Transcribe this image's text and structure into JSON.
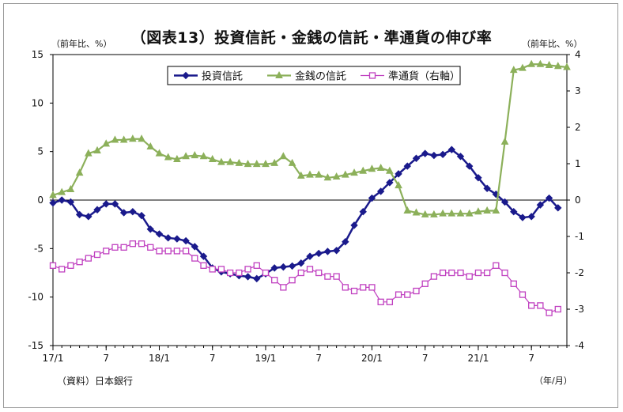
{
  "title": "（図表13）投資信託・金銭の信託・準通貨の伸び率",
  "unit_left": "（前年比、%）",
  "unit_right": "（前年比、%）",
  "source": "（資料）日本銀行",
  "x_unit": "（年/月）",
  "chart_data": {
    "type": "line",
    "title": "（図表13）投資信託・金銭の信託・準通貨の伸び率",
    "legend_position": "top-center",
    "x_tick_labels": [
      "17/1",
      "7",
      "18/1",
      "7",
      "19/1",
      "7",
      "20/1",
      "7",
      "21/1",
      "7"
    ],
    "x_ticks_at": [
      0,
      6,
      12,
      18,
      24,
      30,
      36,
      42,
      48,
      54
    ],
    "x_range": [
      0,
      58
    ],
    "y_left": {
      "range": [
        -15,
        15
      ],
      "ticks": [
        15,
        10,
        5,
        0,
        -5,
        -10,
        -15
      ],
      "label": "（前年比、%）"
    },
    "y_right": {
      "range": [
        -4,
        4
      ],
      "ticks": [
        4,
        3,
        2,
        1,
        0,
        -1,
        -2,
        -3,
        -4
      ],
      "label": "（前年比、%）"
    },
    "grid": false,
    "series": [
      {
        "name": "投資信託",
        "axis": "left",
        "color": "#1a1a8c",
        "marker": "diamond",
        "values": [
          -0.3,
          0.0,
          -0.2,
          -1.5,
          -1.7,
          -1.0,
          -0.4,
          -0.4,
          -1.3,
          -1.2,
          -1.6,
          -3.0,
          -3.5,
          -3.9,
          -4.0,
          -4.2,
          -4.8,
          -5.8,
          -7.0,
          -7.4,
          -7.6,
          -7.8,
          -7.9,
          -8.1,
          -7.6,
          -7.0,
          -6.9,
          -6.8,
          -6.5,
          -5.8,
          -5.5,
          -5.3,
          -5.2,
          -4.3,
          -2.6,
          -1.2,
          0.2,
          0.9,
          1.8,
          2.7,
          3.5,
          4.3,
          4.8,
          4.6,
          4.7,
          5.2,
          4.5,
          3.5,
          2.3,
          1.2,
          0.6,
          -0.2,
          -1.2,
          -1.8,
          -1.7,
          -0.5,
          0.2,
          -0.8
        ]
      },
      {
        "name": "金銭の信託",
        "axis": "left",
        "color": "#8cb05a",
        "marker": "triangle",
        "values": [
          0.5,
          0.8,
          1.1,
          2.8,
          4.8,
          5.1,
          5.8,
          6.2,
          6.2,
          6.3,
          6.3,
          5.5,
          4.8,
          4.4,
          4.2,
          4.5,
          4.6,
          4.5,
          4.2,
          3.9,
          3.9,
          3.8,
          3.7,
          3.7,
          3.7,
          3.8,
          4.5,
          3.8,
          2.5,
          2.6,
          2.6,
          2.3,
          2.4,
          2.6,
          2.8,
          3.0,
          3.2,
          3.3,
          3.0,
          1.5,
          -1.1,
          -1.3,
          -1.5,
          -1.5,
          -1.4,
          -1.4,
          -1.4,
          -1.4,
          -1.2,
          -1.1,
          -1.1,
          6.0,
          13.4,
          13.6,
          14.0,
          14.0,
          13.9,
          13.8,
          13.7
        ]
      },
      {
        "name": "準通貨（右軸）",
        "axis": "right",
        "color": "#c040c0",
        "marker": "square",
        "values": [
          -1.8,
          -1.9,
          -1.8,
          -1.7,
          -1.6,
          -1.5,
          -1.4,
          -1.3,
          -1.3,
          -1.2,
          -1.2,
          -1.3,
          -1.4,
          -1.4,
          -1.4,
          -1.4,
          -1.6,
          -1.8,
          -1.9,
          -1.9,
          -2.0,
          -2.0,
          -1.9,
          -1.8,
          -2.0,
          -2.2,
          -2.4,
          -2.2,
          -2.0,
          -1.9,
          -2.0,
          -2.1,
          -2.1,
          -2.4,
          -2.5,
          -2.4,
          -2.4,
          -2.8,
          -2.8,
          -2.6,
          -2.6,
          -2.5,
          -2.3,
          -2.1,
          -2.0,
          -2.0,
          -2.0,
          -2.1,
          -2.0,
          -2.0,
          -1.8,
          -2.0,
          -2.3,
          -2.6,
          -2.9,
          -2.9,
          -3.1,
          -3.0
        ]
      }
    ]
  }
}
